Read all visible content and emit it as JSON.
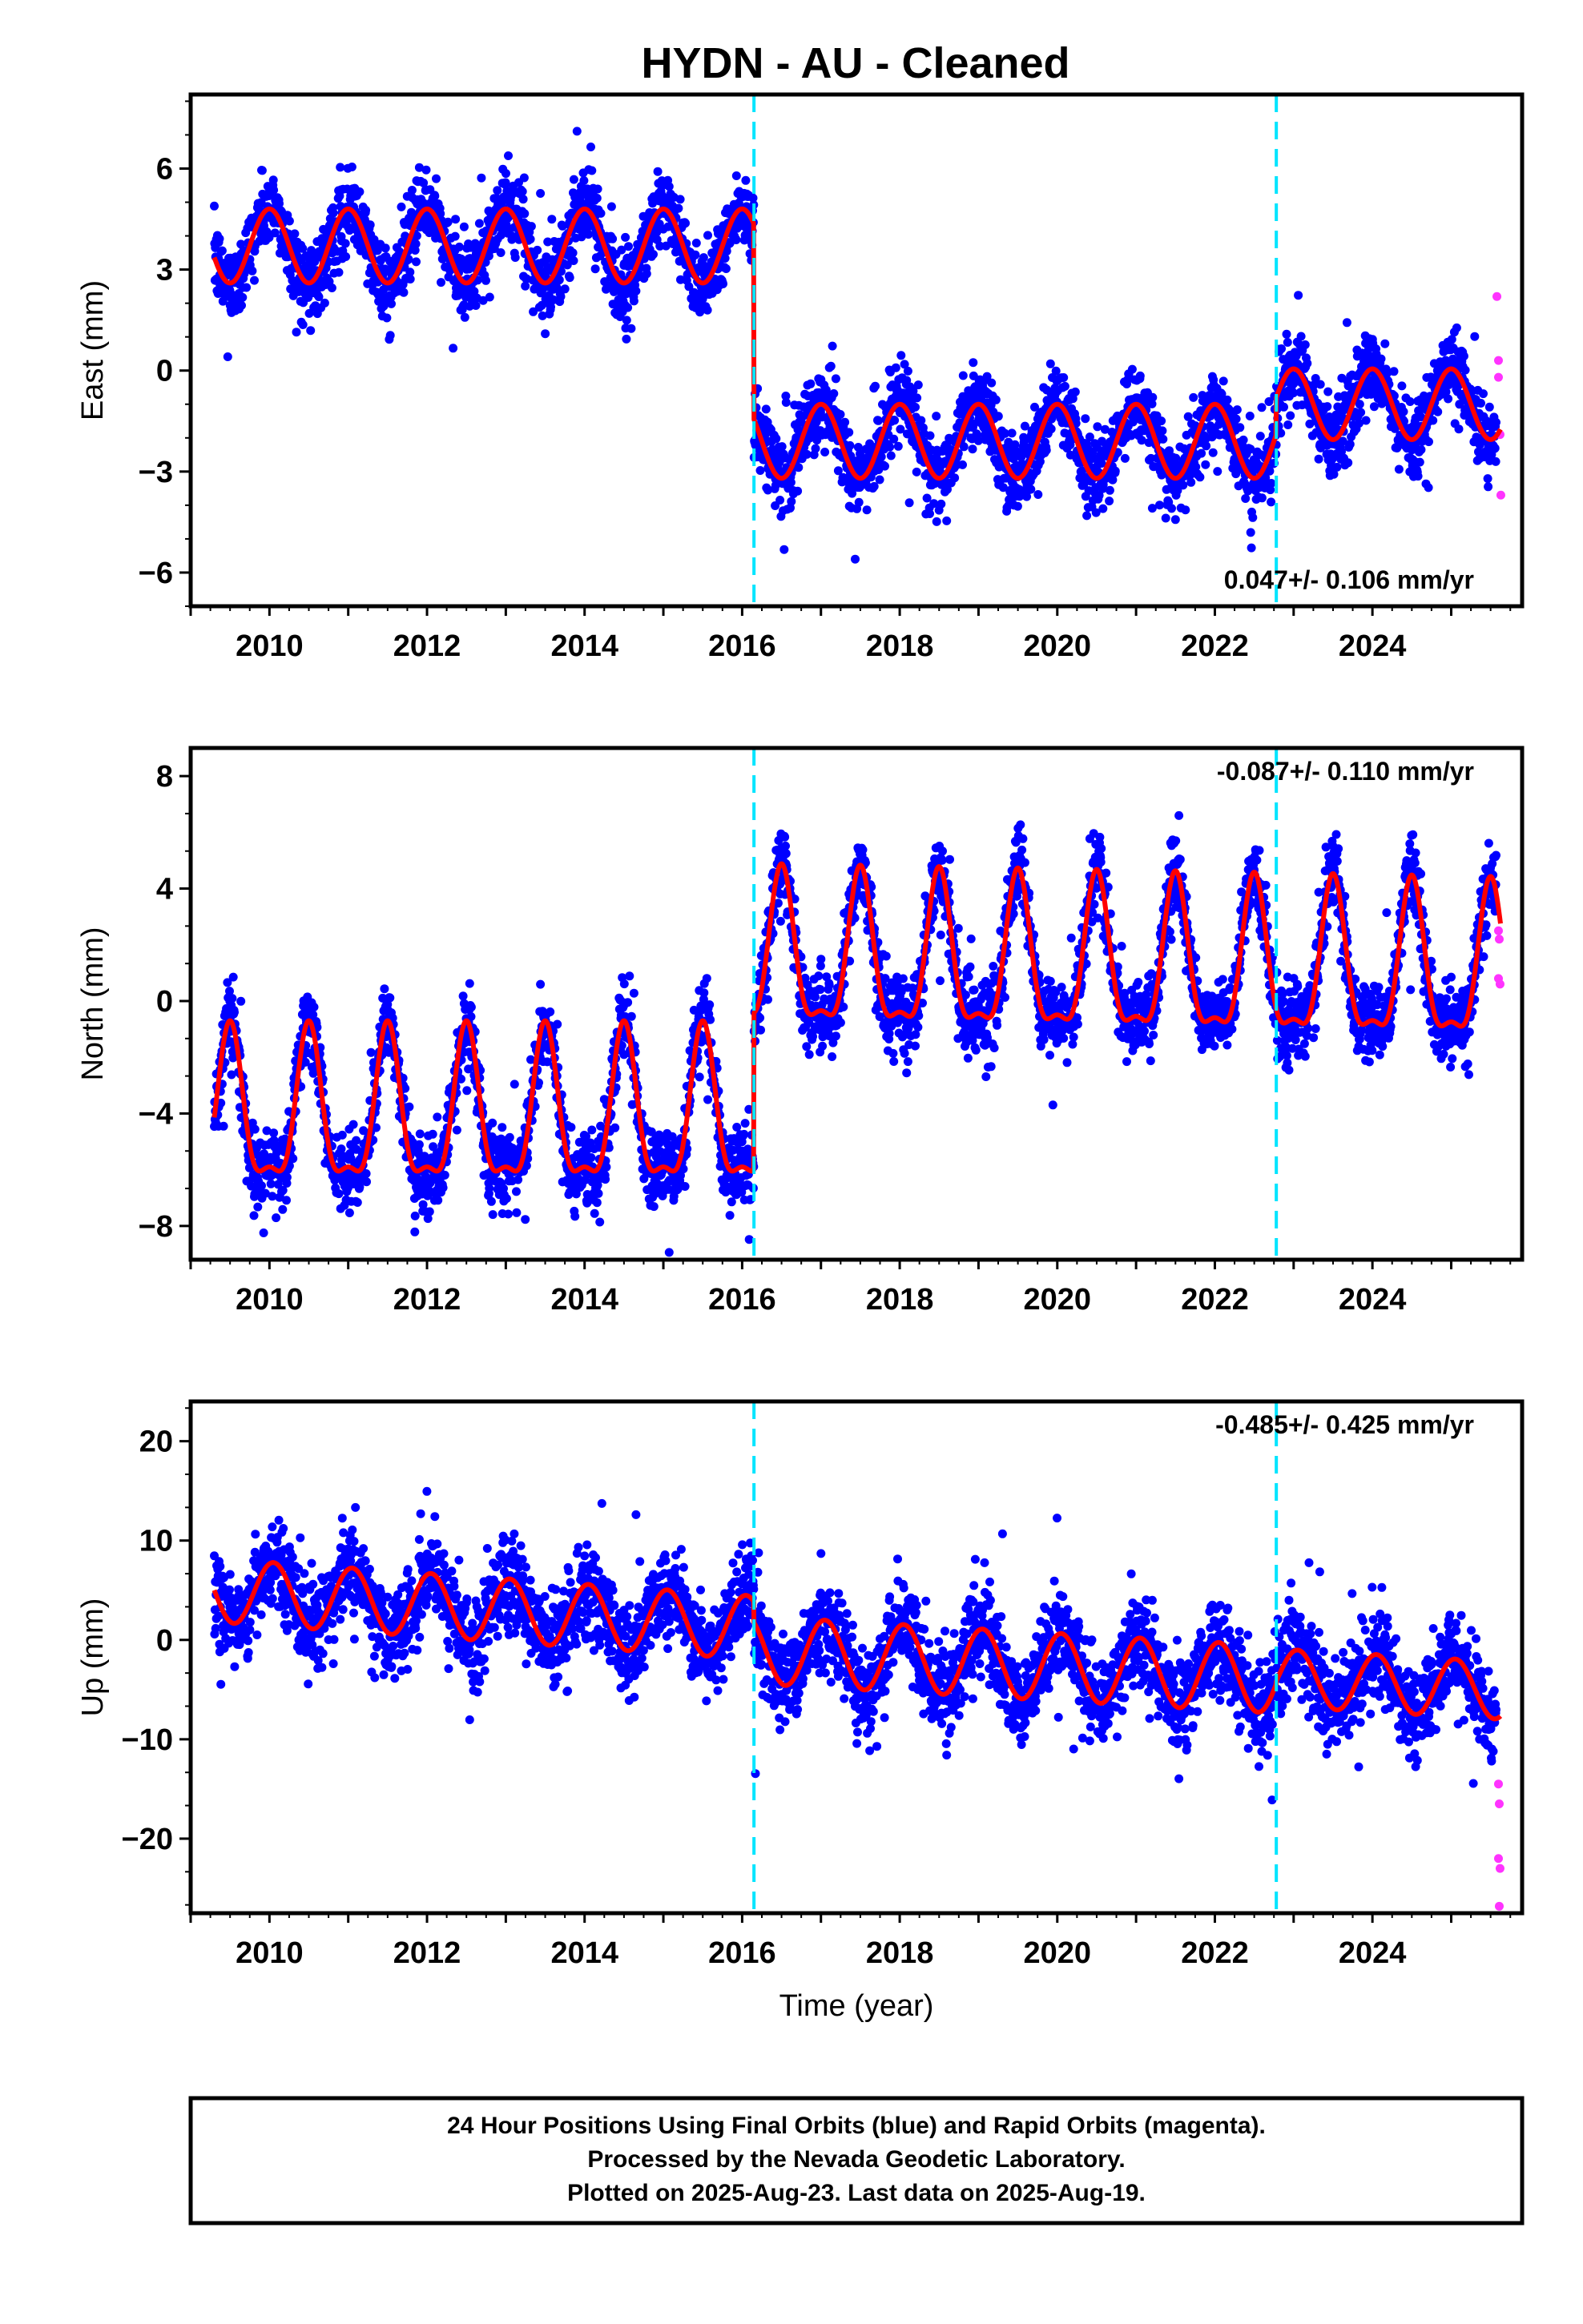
{
  "title": "HYDN  - AU - Cleaned",
  "chart_data": [
    {
      "type": "scatter",
      "ylabel": "East (mm)",
      "xlim": [
        2009.0,
        2025.9
      ],
      "ylim": [
        -7.0,
        8.2
      ],
      "yticks": [
        -6,
        -3,
        0,
        3,
        6
      ],
      "xticks": [
        2010,
        2012,
        2014,
        2016,
        2018,
        2020,
        2022,
        2024
      ],
      "rate_text": "0.047+/- 0.106 mm/yr",
      "model": {
        "segments": [
          {
            "start": 2009.3,
            "end": 2016.15,
            "offset": 3.7,
            "trend": 0.0,
            "amplitude": 1.1,
            "phase_peak": 0.0
          },
          {
            "start": 2016.15,
            "end": 2022.78,
            "offset": -2.1,
            "trend": 0.0,
            "amplitude": 1.1,
            "phase_peak": 0.0
          },
          {
            "start": 2022.78,
            "end": 2025.63,
            "offset": -1.0,
            "trend": 0.0,
            "amplitude": 1.05,
            "phase_peak": 0.0
          }
        ],
        "noise": 1.0
      },
      "rapid_points": [
        {
          "x": 2025.58,
          "y": 2.2
        },
        {
          "x": 2025.6,
          "y": 0.3
        },
        {
          "x": 2025.6,
          "y": -0.2
        },
        {
          "x": 2025.62,
          "y": -1.9
        },
        {
          "x": 2025.63,
          "y": -3.7
        }
      ]
    },
    {
      "type": "scatter",
      "ylabel": "North (mm)",
      "xlim": [
        2009.0,
        2025.9
      ],
      "ylim": [
        -9.2,
        9.0
      ],
      "yticks": [
        -8,
        -4,
        0,
        4,
        8
      ],
      "xticks": [
        2010,
        2012,
        2014,
        2016,
        2018,
        2020,
        2022,
        2024
      ],
      "rate_text": "-0.087+/- 0.110 mm/yr",
      "model": {
        "segments": [
          {
            "start": 2009.3,
            "end": 2016.15,
            "offset": -3.3,
            "trend": 0.0,
            "amplitude": 2.6,
            "phase_peak": 0.5,
            "sharp": true
          },
          {
            "start": 2016.15,
            "end": 2025.63,
            "offset": 2.3,
            "trend": -0.05,
            "amplitude": 2.6,
            "phase_peak": 0.5,
            "sharp": true
          }
        ],
        "noise": 1.2
      },
      "rapid_points": [
        {
          "x": 2025.6,
          "y": 2.5
        },
        {
          "x": 2025.61,
          "y": 2.2
        },
        {
          "x": 2025.6,
          "y": 0.8
        },
        {
          "x": 2025.62,
          "y": 0.6
        }
      ]
    },
    {
      "type": "scatter",
      "ylabel": "Up (mm)",
      "xlim": [
        2009.0,
        2025.9
      ],
      "ylim": [
        -27.5,
        24.0
      ],
      "yticks": [
        -20,
        -10,
        0,
        10,
        20
      ],
      "xticks": [
        2010,
        2012,
        2014,
        2016,
        2018,
        2020,
        2022,
        2024
      ],
      "xlabel": "Time (year)",
      "rate_text": "-0.485+/- 0.425 mm/yr",
      "model": {
        "segments": [
          {
            "start": 2009.3,
            "end": 2016.15,
            "offset": 5.0,
            "trend": -0.55,
            "amplitude": 3.2,
            "phase_peak": 0.05
          },
          {
            "start": 2016.15,
            "end": 2022.78,
            "offset": -1.0,
            "trend": -0.45,
            "amplitude": 3.4,
            "phase_peak": 0.05
          },
          {
            "start": 2022.78,
            "end": 2025.63,
            "offset": -3.8,
            "trend": -0.45,
            "amplitude": 2.9,
            "phase_peak": 0.05
          }
        ],
        "noise": 4.0
      },
      "rapid_points": [
        {
          "x": 2025.6,
          "y": -14.5
        },
        {
          "x": 2025.61,
          "y": -16.5
        },
        {
          "x": 2025.6,
          "y": -22.0
        },
        {
          "x": 2025.62,
          "y": -23.0
        },
        {
          "x": 2025.61,
          "y": -26.8
        }
      ]
    }
  ],
  "breaks": [
    2016.15,
    2022.78
  ],
  "colors": {
    "final_orbits": "#0000ff",
    "rapid_orbits": "#ff33ff",
    "model": "#ff0000",
    "breaks": "#00e5ff"
  },
  "footer": {
    "line1": "24 Hour Positions Using Final Orbits (blue) and Rapid Orbits (magenta).",
    "line2": "Processed by the Nevada Geodetic Laboratory.",
    "line3": "Plotted on 2025-Aug-23. Last data on 2025-Aug-19."
  }
}
